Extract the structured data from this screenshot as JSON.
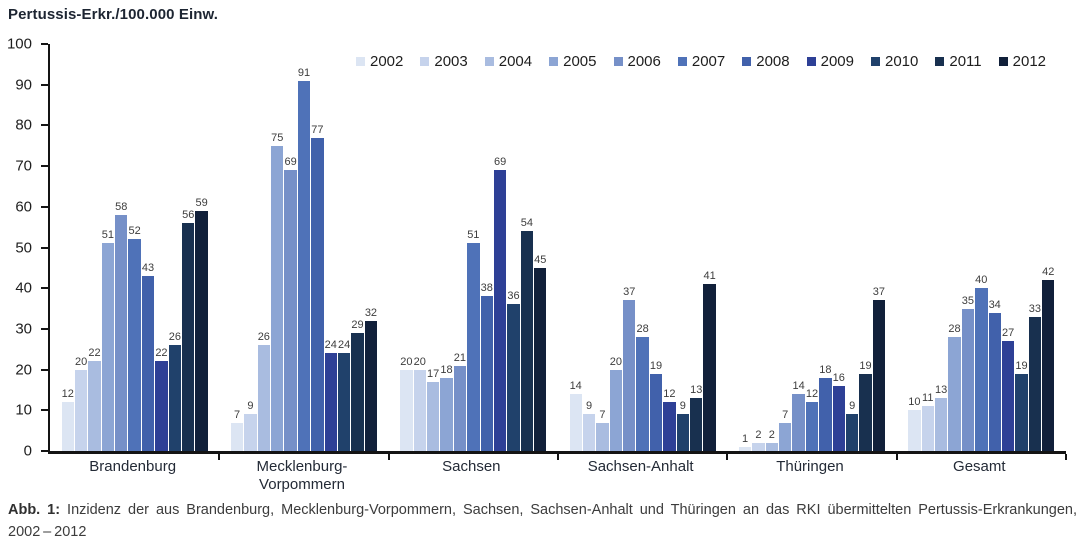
{
  "title": "Pertussis-Erkr./100.000 Einw.",
  "chart_data": {
    "type": "bar",
    "title": "Pertussis-Erkr./100.000 Einw.",
    "ylabel": "Pertussis-Erkr./100.000 Einw.",
    "xlabel": "",
    "ylim": [
      0,
      100
    ],
    "yticks": [
      0,
      10,
      20,
      30,
      40,
      50,
      60,
      70,
      80,
      90,
      100
    ],
    "grid": false,
    "legend_position": "top",
    "categories": [
      "Brandenburg",
      "Mecklenburg-\nVorpommern",
      "Sachsen",
      "Sachsen-Anhalt",
      "Thüringen",
      "Gesamt"
    ],
    "series": [
      {
        "name": "2002",
        "color": "#DCE5F3",
        "values": [
          12,
          7,
          20,
          14,
          1,
          10
        ]
      },
      {
        "name": "2003",
        "color": "#C6D3EC",
        "values": [
          20,
          9,
          20,
          9,
          2,
          11
        ]
      },
      {
        "name": "2004",
        "color": "#A9BCE0",
        "values": [
          22,
          26,
          17,
          7,
          2,
          13
        ]
      },
      {
        "name": "2005",
        "color": "#8CA5D4",
        "values": [
          51,
          75,
          18,
          20,
          7,
          28
        ]
      },
      {
        "name": "2006",
        "color": "#7690C8",
        "values": [
          58,
          69,
          21,
          37,
          14,
          35
        ]
      },
      {
        "name": "2007",
        "color": "#4F72B8",
        "values": [
          52,
          91,
          51,
          28,
          12,
          40
        ]
      },
      {
        "name": "2008",
        "color": "#4161AB",
        "values": [
          43,
          77,
          38,
          19,
          18,
          34
        ]
      },
      {
        "name": "2009",
        "color": "#2E4096",
        "values": [
          22,
          24,
          69,
          12,
          16,
          27
        ]
      },
      {
        "name": "2010",
        "color": "#20416B",
        "values": [
          26,
          24,
          36,
          9,
          9,
          19
        ]
      },
      {
        "name": "2011",
        "color": "#18304F",
        "values": [
          56,
          29,
          54,
          13,
          19,
          33
        ]
      },
      {
        "name": "2012",
        "color": "#11203A",
        "values": [
          59,
          32,
          45,
          41,
          37,
          42
        ]
      }
    ]
  },
  "caption": {
    "label": "Abb. 1:",
    "text": "Inzidenz der aus Brandenburg, Mecklenburg-Vorpommern, Sachsen, Sachsen-Anhalt und Thüringen an das RKI übermittelten Pertussis-Erkrankungen, 2002 – 2012"
  }
}
